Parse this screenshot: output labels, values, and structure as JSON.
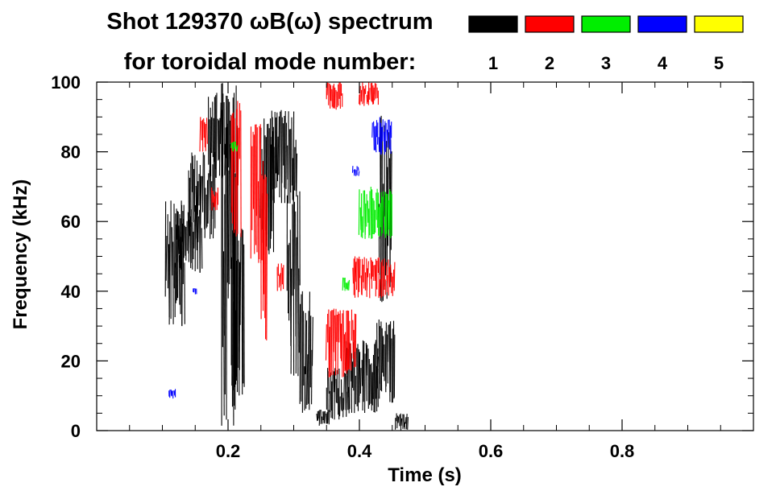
{
  "chart_data": {
    "type": "heatmap",
    "title": "Shot 129370 ωB(ω) spectrum",
    "subtitle": "for toroidal mode number:",
    "xlabel": "Time (s)",
    "ylabel": "Frequency (kHz)",
    "xlim": [
      0.0,
      1.0
    ],
    "ylim": [
      0,
      100
    ],
    "x_ticks": [
      0.2,
      0.4,
      0.6,
      0.8
    ],
    "x_tick_labels": [
      "0.2",
      "0.4",
      "0.6",
      "0.8"
    ],
    "y_ticks": [
      0,
      20,
      40,
      60,
      80,
      100
    ],
    "y_tick_labels": [
      "0",
      "20",
      "40",
      "60",
      "80",
      "100"
    ],
    "legend": [
      {
        "n": "1",
        "color": "#000000"
      },
      {
        "n": "2",
        "color": "#ff0000"
      },
      {
        "n": "3",
        "color": "#00ee00"
      },
      {
        "n": "4",
        "color": "#0000ff"
      },
      {
        "n": "5",
        "color": "#ffff00"
      }
    ],
    "series": [
      {
        "name": "n=1",
        "color": "#000000",
        "patches": [
          {
            "t": [
              0.105,
              0.135
            ],
            "f": [
              30,
              66
            ]
          },
          {
            "t": [
              0.12,
              0.16
            ],
            "f": [
              45,
              65
            ]
          },
          {
            "t": [
              0.14,
              0.18
            ],
            "f": [
              55,
              80
            ]
          },
          {
            "t": [
              0.17,
              0.205
            ],
            "f": [
              72,
              97
            ]
          },
          {
            "t": [
              0.19,
              0.215
            ],
            "f": [
              0,
              100
            ]
          },
          {
            "t": [
              0.205,
              0.225
            ],
            "f": [
              10,
              60
            ]
          },
          {
            "t": [
              0.25,
              0.27
            ],
            "f": [
              50,
              90
            ]
          },
          {
            "t": [
              0.265,
              0.305
            ],
            "f": [
              65,
              92
            ]
          },
          {
            "t": [
              0.29,
              0.31
            ],
            "f": [
              15,
              70
            ]
          },
          {
            "t": [
              0.31,
              0.33
            ],
            "f": [
              5,
              40
            ]
          },
          {
            "t": [
              0.335,
              0.355
            ],
            "f": [
              1,
              6
            ]
          },
          {
            "t": [
              0.35,
              0.385
            ],
            "f": [
              3,
              18
            ]
          },
          {
            "t": [
              0.38,
              0.43
            ],
            "f": [
              5,
              26
            ]
          },
          {
            "t": [
              0.425,
              0.455
            ],
            "f": [
              8,
              32
            ]
          },
          {
            "t": [
              0.43,
              0.45
            ],
            "f": [
              35,
              92
            ]
          },
          {
            "t": [
              0.455,
              0.475
            ],
            "f": [
              0,
              5
            ]
          }
        ]
      },
      {
        "name": "n=2",
        "color": "#ff0000",
        "patches": [
          {
            "t": [
              0.158,
              0.168
            ],
            "f": [
              80,
              90
            ]
          },
          {
            "t": [
              0.175,
              0.185
            ],
            "f": [
              63,
              70
            ]
          },
          {
            "t": [
              0.205,
              0.22
            ],
            "f": [
              55,
              95
            ]
          },
          {
            "t": [
              0.235,
              0.25
            ],
            "f": [
              48,
              88
            ]
          },
          {
            "t": [
              0.25,
              0.26
            ],
            "f": [
              25,
              78
            ]
          },
          {
            "t": [
              0.275,
              0.285
            ],
            "f": [
              40,
              48
            ]
          },
          {
            "t": [
              0.35,
              0.395
            ],
            "f": [
              15,
              35
            ]
          },
          {
            "t": [
              0.39,
              0.455
            ],
            "f": [
              38,
              50
            ]
          },
          {
            "t": [
              0.35,
              0.375
            ],
            "f": [
              92,
              100
            ]
          },
          {
            "t": [
              0.4,
              0.43
            ],
            "f": [
              93,
              100
            ]
          }
        ]
      },
      {
        "name": "n=3",
        "color": "#00ee00",
        "patches": [
          {
            "t": [
              0.205,
              0.215
            ],
            "f": [
              80,
              83
            ]
          },
          {
            "t": [
              0.375,
              0.385
            ],
            "f": [
              40,
              44
            ]
          },
          {
            "t": [
              0.4,
              0.45
            ],
            "f": [
              55,
              70
            ]
          }
        ]
      },
      {
        "name": "n=4",
        "color": "#0000ff",
        "patches": [
          {
            "t": [
              0.11,
              0.12
            ],
            "f": [
              9,
              12
            ]
          },
          {
            "t": [
              0.147,
              0.152
            ],
            "f": [
              39,
              41
            ]
          },
          {
            "t": [
              0.39,
              0.4
            ],
            "f": [
              73,
              76
            ]
          },
          {
            "t": [
              0.42,
              0.45
            ],
            "f": [
              79,
              90
            ]
          }
        ]
      },
      {
        "name": "n=5",
        "color": "#ffff00",
        "patches": []
      }
    ]
  }
}
